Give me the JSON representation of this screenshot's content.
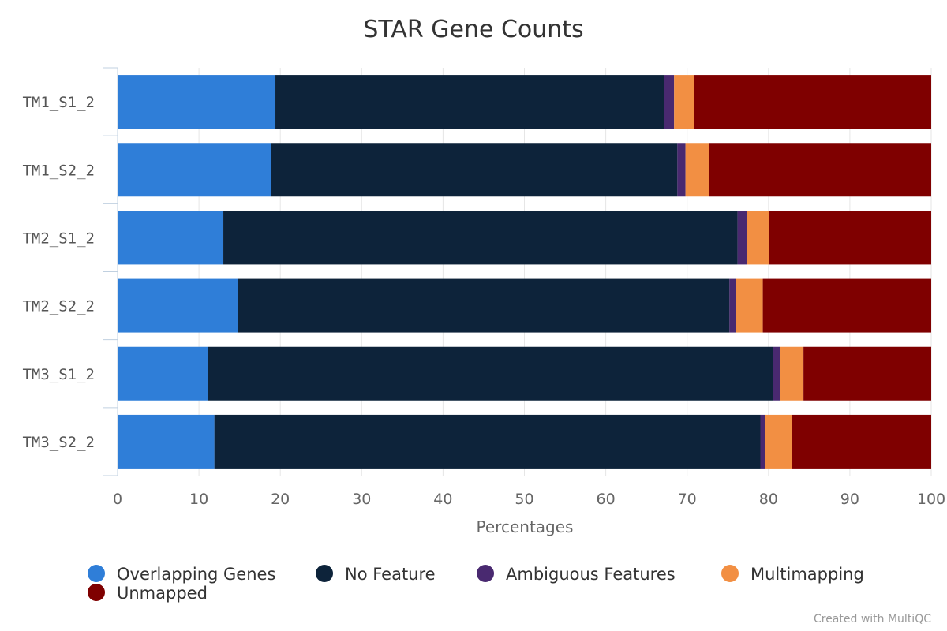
{
  "chart_data": {
    "type": "bar",
    "orientation": "horizontal",
    "stacked": true,
    "title": "STAR Gene Counts",
    "xlabel": "Percentages",
    "ylabel": "",
    "xlim": [
      0,
      100
    ],
    "xticks": [
      0,
      10,
      20,
      30,
      40,
      50,
      60,
      70,
      80,
      90,
      100
    ],
    "grid": true,
    "legend_position": "bottom",
    "credit": "Created with MultiQC",
    "categories": [
      "TM1_S1_2",
      "TM1_S2_2",
      "TM2_S1_2",
      "TM2_S2_2",
      "TM3_S1_2",
      "TM3_S2_2"
    ],
    "series": [
      {
        "name": "Overlapping Genes",
        "color": "#2f7ed8",
        "values": [
          19.4,
          18.9,
          13.0,
          14.8,
          11.1,
          11.9
        ]
      },
      {
        "name": "No Feature",
        "color": "#0d233a",
        "values": [
          47.8,
          49.9,
          63.2,
          60.4,
          69.5,
          67.1
        ]
      },
      {
        "name": "Ambiguous Features",
        "color": "#492970",
        "values": [
          1.2,
          1.0,
          1.2,
          0.8,
          0.8,
          0.6
        ]
      },
      {
        "name": "Multimapping",
        "color": "#f28f43",
        "values": [
          2.5,
          2.9,
          2.7,
          3.3,
          2.9,
          3.3
        ]
      },
      {
        "name": "Unmapped",
        "color": "#7f0000",
        "values": [
          29.1,
          27.3,
          19.9,
          20.7,
          15.7,
          17.1
        ]
      }
    ]
  }
}
